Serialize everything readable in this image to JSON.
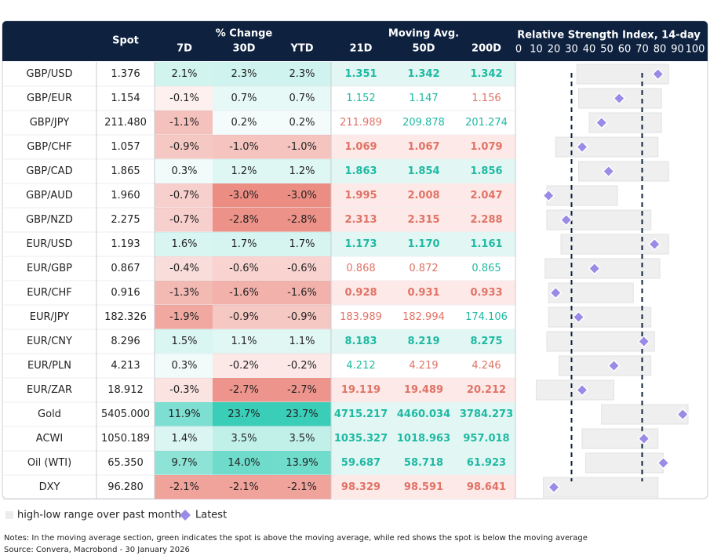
{
  "header": {
    "spot": "Spot",
    "pct_change": "% Change",
    "moving_avg": "Moving Avg.",
    "rsi_title": "Relative Strength Index, 14-day",
    "columns": [
      "7D",
      "30D",
      "YTD",
      "21D",
      "50D",
      "200D"
    ]
  },
  "rsi_axis": {
    "xlim": [
      0,
      100
    ],
    "xticks": [
      0,
      10,
      20,
      30,
      40,
      50,
      60,
      70,
      80,
      90,
      100
    ],
    "lines": [
      30,
      70
    ]
  },
  "rows": [
    {
      "name": "GBP/USD",
      "spot": "1.376",
      "change": [
        "2.1%",
        "2.3%",
        "2.3%"
      ],
      "ma": [
        "1.351",
        "1.342",
        "1.342"
      ],
      "rsi": {
        "low": 33,
        "high": 85,
        "latest": 79
      }
    },
    {
      "name": "GBP/EUR",
      "spot": "1.154",
      "change": [
        "-0.1%",
        "0.7%",
        "0.7%"
      ],
      "ma": [
        "1.152",
        "1.147",
        "1.156"
      ],
      "rsi": {
        "low": 34,
        "high": 81,
        "latest": 57
      }
    },
    {
      "name": "GBP/JPY",
      "spot": "211.480",
      "change": [
        "-1.1%",
        "0.2%",
        "0.2%"
      ],
      "ma": [
        "211.989",
        "209.878",
        "201.274"
      ],
      "rsi": {
        "low": 40,
        "high": 81,
        "latest": 47
      }
    },
    {
      "name": "GBP/CHF",
      "spot": "1.057",
      "change": [
        "-0.9%",
        "-1.0%",
        "-1.0%"
      ],
      "ma": [
        "1.069",
        "1.067",
        "1.079"
      ],
      "rsi": {
        "low": 21,
        "high": 79,
        "latest": 36
      }
    },
    {
      "name": "GBP/CAD",
      "spot": "1.865",
      "change": [
        "0.3%",
        "1.2%",
        "1.2%"
      ],
      "ma": [
        "1.863",
        "1.854",
        "1.856"
      ],
      "rsi": {
        "low": 34,
        "high": 85,
        "latest": 51
      }
    },
    {
      "name": "GBP/AUD",
      "spot": "1.960",
      "change": [
        "-0.7%",
        "-3.0%",
        "-3.0%"
      ],
      "ma": [
        "1.995",
        "2.008",
        "2.047"
      ],
      "rsi": {
        "low": 16,
        "high": 56,
        "latest": 17
      }
    },
    {
      "name": "GBP/NZD",
      "spot": "2.275",
      "change": [
        "-0.7%",
        "-2.8%",
        "-2.8%"
      ],
      "ma": [
        "2.313",
        "2.315",
        "2.288"
      ],
      "rsi": {
        "low": 16,
        "high": 75,
        "latest": 27
      }
    },
    {
      "name": "EUR/USD",
      "spot": "1.193",
      "change": [
        "1.6%",
        "1.7%",
        "1.7%"
      ],
      "ma": [
        "1.173",
        "1.170",
        "1.161"
      ],
      "rsi": {
        "low": 24,
        "high": 85,
        "latest": 77
      }
    },
    {
      "name": "EUR/GBP",
      "spot": "0.867",
      "change": [
        "-0.4%",
        "-0.6%",
        "-0.6%"
      ],
      "ma": [
        "0.868",
        "0.872",
        "0.865"
      ],
      "rsi": {
        "low": 15,
        "high": 80,
        "latest": 43
      }
    },
    {
      "name": "EUR/CHF",
      "spot": "0.916",
      "change": [
        "-1.3%",
        "-1.6%",
        "-1.6%"
      ],
      "ma": [
        "0.928",
        "0.931",
        "0.933"
      ],
      "rsi": {
        "low": 17,
        "high": 65,
        "latest": 21
      }
    },
    {
      "name": "EUR/JPY",
      "spot": "182.326",
      "change": [
        "-1.9%",
        "-0.9%",
        "-0.9%"
      ],
      "ma": [
        "183.989",
        "182.994",
        "174.106"
      ],
      "rsi": {
        "low": 17,
        "high": 75,
        "latest": 34
      }
    },
    {
      "name": "EUR/CNY",
      "spot": "8.296",
      "change": [
        "1.5%",
        "1.1%",
        "1.1%"
      ],
      "ma": [
        "8.183",
        "8.219",
        "8.275"
      ],
      "rsi": {
        "low": 16,
        "high": 77,
        "latest": 71
      }
    },
    {
      "name": "EUR/PLN",
      "spot": "4.213",
      "change": [
        "0.3%",
        "-0.2%",
        "-0.2%"
      ],
      "ma": [
        "4.212",
        "4.219",
        "4.246"
      ],
      "rsi": {
        "low": 23,
        "high": 75,
        "latest": 54
      }
    },
    {
      "name": "EUR/ZAR",
      "spot": "18.912",
      "change": [
        "-0.3%",
        "-2.7%",
        "-2.7%"
      ],
      "ma": [
        "19.119",
        "19.489",
        "20.212"
      ],
      "rsi": {
        "low": 10,
        "high": 54,
        "latest": 36
      }
    },
    {
      "name": "Gold",
      "spot": "5405.000",
      "change": [
        "11.9%",
        "23.7%",
        "23.7%"
      ],
      "ma": [
        "4715.217",
        "4460.034",
        "3784.273"
      ],
      "rsi": {
        "low": 47,
        "high": 96,
        "latest": 93
      }
    },
    {
      "name": "ACWI",
      "spot": "1050.189",
      "change": [
        "1.4%",
        "3.5%",
        "3.5%"
      ],
      "ma": [
        "1035.327",
        "1018.963",
        "957.018"
      ],
      "rsi": {
        "low": 36,
        "high": 79,
        "latest": 71
      }
    },
    {
      "name": "Oil (WTI)",
      "spot": "65.350",
      "change": [
        "9.7%",
        "14.0%",
        "13.9%"
      ],
      "ma": [
        "59.687",
        "58.718",
        "61.923"
      ],
      "rsi": {
        "low": 38,
        "high": 82,
        "latest": 82
      }
    },
    {
      "name": "DXY",
      "spot": "96.280",
      "change": [
        "-2.1%",
        "-2.1%",
        "-2.1%"
      ],
      "ma": [
        "98.329",
        "98.591",
        "98.641"
      ],
      "rsi": {
        "low": 14,
        "high": 79,
        "latest": 20
      }
    }
  ],
  "legend": {
    "range": "high-low range over past month",
    "latest": "Latest"
  },
  "notes": [
    "Notes: In the moving average section, green indicates the spot is above the moving average, while red shows the spot is below the moving average",
    "Source: Convera, Macrobond - 30 January 2026"
  ]
}
